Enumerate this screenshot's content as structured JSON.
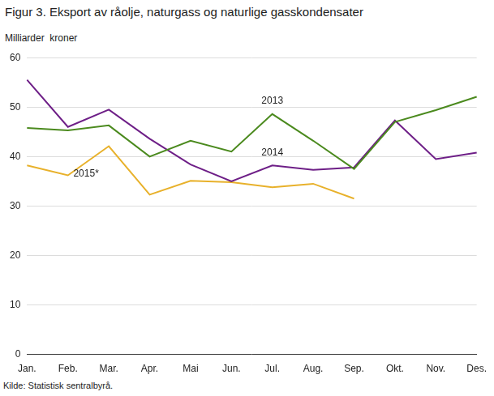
{
  "chart_data": {
    "type": "line",
    "title": "Figur 3. Eksport av råolje, naturgass og naturlige gasskondensater",
    "ylabel": "Milliarder  kroner",
    "source": "Kilde: Statistisk sentralbyrå.",
    "categories": [
      "Jan.",
      "Feb.",
      "Mar.",
      "Apr.",
      "Mai",
      "Jun.",
      "Jul.",
      "Aug.",
      "Sep.",
      "Okt.",
      "Nov.",
      "Des."
    ],
    "series": [
      {
        "name": "2013",
        "color": "#4b8a1e",
        "values": [
          45.8,
          45.3,
          46.3,
          40.0,
          43.2,
          41.0,
          48.6,
          43.2,
          37.5,
          47.0,
          49.4,
          52.1
        ]
      },
      {
        "name": "2014",
        "color": "#6e1f87",
        "values": [
          55.5,
          46.0,
          49.5,
          43.6,
          38.4,
          35.0,
          38.2,
          37.3,
          37.8,
          47.3,
          39.5,
          40.8
        ]
      },
      {
        "name": "2015*",
        "color": "#e8b12b",
        "values": [
          38.2,
          36.2,
          42.1,
          32.3,
          35.1,
          34.8,
          33.8,
          34.5,
          31.5,
          null,
          null,
          null
        ]
      }
    ],
    "ylim": [
      0,
      60
    ],
    "yticks": [
      0,
      10,
      20,
      30,
      40,
      50,
      60
    ],
    "grid": "y"
  }
}
